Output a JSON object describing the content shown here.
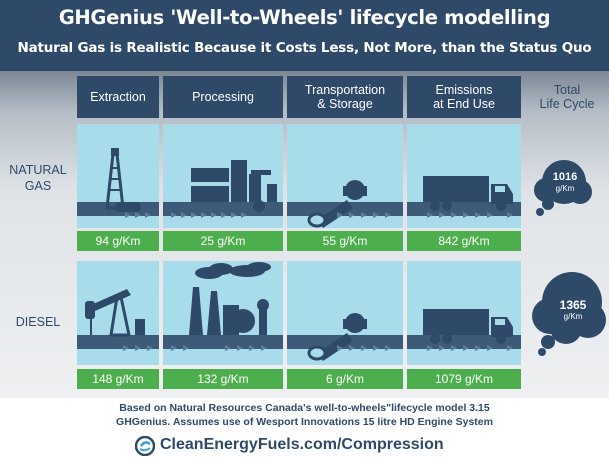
{
  "header": {
    "title": "GHGenius 'Well-to-Wheels' lifecycle modelling",
    "subtitle": "Natural Gas is Realistic Because it Costs Less, Not More, than the Status Quo"
  },
  "columns": [
    {
      "label": "Extraction"
    },
    {
      "label": "Processing"
    },
    {
      "label": "Transportation\n& Storage"
    },
    {
      "label": "Emissions\nat End Use"
    },
    {
      "label": "Total\nLife Cycle"
    }
  ],
  "rows": [
    {
      "label": "NATURAL\nGAS",
      "values": [
        "94 g/Km",
        "25 g/Km",
        "55 g/Km",
        "842 g/Km"
      ],
      "total": {
        "value": "1016",
        "unit": "g/Km"
      }
    },
    {
      "label": "DIESEL",
      "values": [
        "148 g/Km",
        "132 g/Km",
        "6 g/Km",
        "1079 g/Km"
      ],
      "total": {
        "value": "1365",
        "unit": "g/Km"
      }
    }
  ],
  "footnote": {
    "line1": "Based on Natural Resources Canada's well-to-wheels\"lifecycle model 3.15",
    "line2": "GHGenius. Assumes use of Wesport Innovations 15 litre HD Engine System"
  },
  "footer": {
    "link": "CleanEnergyFuels.com/Compression"
  },
  "icons": [
    "oil-derrick-icon",
    "pumpjack-icon",
    "processing-plant-icon",
    "refinery-icon",
    "pipeline-valve-icon",
    "truck-icon",
    "emission-cloud-icon",
    "clean-energy-logo-icon"
  ],
  "colors": {
    "navy": "#2f4a69",
    "sky": "#a9dcea",
    "green": "#4cae4c",
    "cloud": "#2f4a69"
  }
}
